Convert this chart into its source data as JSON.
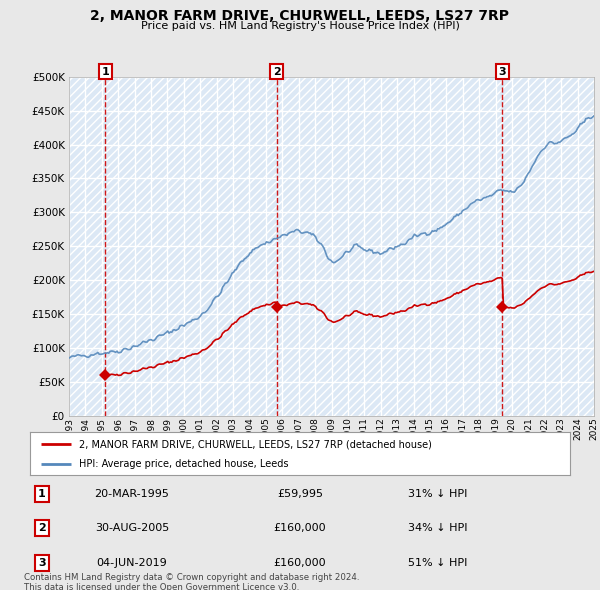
{
  "title": "2, MANOR FARM DRIVE, CHURWELL, LEEDS, LS27 7RP",
  "subtitle": "Price paid vs. HM Land Registry's House Price Index (HPI)",
  "transactions": [
    {
      "num": 1,
      "date": "20-MAR-1995",
      "price": 59995,
      "year": 1995.22,
      "label": "£59,995",
      "pct": "31% ↓ HPI"
    },
    {
      "num": 2,
      "date": "30-AUG-2005",
      "price": 160000,
      "year": 2005.66,
      "label": "£160,000",
      "pct": "34% ↓ HPI"
    },
    {
      "num": 3,
      "date": "04-JUN-2019",
      "price": 160000,
      "year": 2019.42,
      "label": "£160,000",
      "pct": "51% ↓ HPI"
    }
  ],
  "legend_label_red": "2, MANOR FARM DRIVE, CHURWELL, LEEDS, LS27 7RP (detached house)",
  "legend_label_blue": "HPI: Average price, detached house, Leeds",
  "footer1": "Contains HM Land Registry data © Crown copyright and database right 2024.",
  "footer2": "This data is licensed under the Open Government Licence v3.0.",
  "ylim": [
    0,
    500000
  ],
  "yticks": [
    0,
    50000,
    100000,
    150000,
    200000,
    250000,
    300000,
    350000,
    400000,
    450000,
    500000
  ],
  "ytick_labels": [
    "£0",
    "£50K",
    "£100K",
    "£150K",
    "£200K",
    "£250K",
    "£300K",
    "£350K",
    "£400K",
    "£450K",
    "£500K"
  ],
  "background_color": "#e8e8e8",
  "plot_bg_color": "#dce8f5",
  "red_color": "#cc0000",
  "blue_color": "#5588bb",
  "grid_color": "#aabbcc",
  "hatch_color": "#c8d8e8",
  "number_box_color": "#cc0000"
}
